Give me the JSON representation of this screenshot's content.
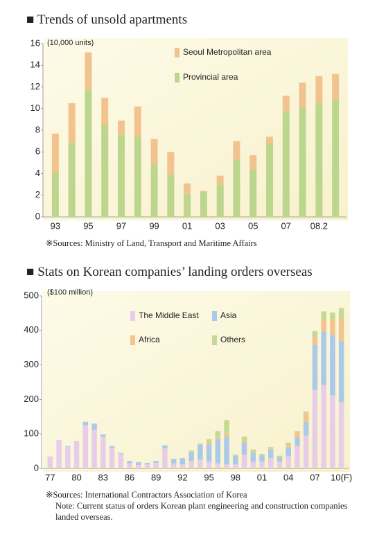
{
  "chart_data": [
    {
      "type": "bar",
      "stacked": true,
      "title": "■ Trends of unsold apartments",
      "y_label": "(10,000 units)",
      "source": "※Sources: Ministry of Land, Transport and Maritime Affairs",
      "categories": [
        "93",
        null,
        "95",
        null,
        "97",
        null,
        "99",
        null,
        "01",
        null,
        "03",
        null,
        "05",
        null,
        "07",
        null,
        "08.2",
        null
      ],
      "series": [
        {
          "name": "Provincial area",
          "color": "#bcd68e",
          "values": [
            4.1,
            6.9,
            11.7,
            8.5,
            7.6,
            7.4,
            4.9,
            3.9,
            2.1,
            2.3,
            3.0,
            5.3,
            4.4,
            6.8,
            9.8,
            10.1,
            10.5,
            10.8
          ]
        },
        {
          "name": "Seoul Metropolitan area",
          "color": "#f2c38e",
          "values": [
            3.6,
            3.6,
            3.5,
            2.5,
            1.3,
            2.8,
            2.3,
            2.1,
            1.0,
            0.1,
            0.8,
            1.7,
            1.3,
            0.6,
            1.4,
            2.3,
            2.5,
            2.4
          ]
        }
      ],
      "ylim": [
        0,
        16
      ],
      "yticks": [
        0,
        2,
        4,
        6,
        8,
        10,
        12,
        14,
        16
      ],
      "grid": false
    },
    {
      "type": "bar",
      "stacked": true,
      "title": "■ Stats on Korean companies’ landing orders overseas",
      "y_label": "($100 million)",
      "source": "※Sources: International Contractors Association of Korea",
      "note": "Note: Current status of orders Korean plant engineering and construction companies landed overseas.",
      "categories": [
        "77",
        null,
        null,
        "80",
        null,
        null,
        "83",
        null,
        null,
        "86",
        null,
        null,
        "89",
        null,
        null,
        "92",
        null,
        null,
        "95",
        null,
        null,
        "98",
        null,
        null,
        "01",
        null,
        null,
        "04",
        null,
        null,
        "07",
        null,
        null,
        "10(F)"
      ],
      "series": [
        {
          "name": "The Middle East",
          "color": "#e8cde8",
          "values": [
            35,
            82,
            63,
            80,
            125,
            112,
            92,
            60,
            43,
            15,
            10,
            12,
            17,
            58,
            15,
            12,
            22,
            25,
            20,
            15,
            12,
            12,
            40,
            20,
            20,
            30,
            20,
            35,
            65,
            95,
            228,
            242,
            212,
            192
          ]
        },
        {
          "name": "Asia",
          "color": "#abc9e9",
          "values": [
            0,
            0,
            2,
            0,
            10,
            18,
            7,
            5,
            2,
            7,
            8,
            4,
            5,
            9,
            13,
            18,
            25,
            45,
            50,
            70,
            80,
            25,
            35,
            25,
            18,
            25,
            12,
            25,
            25,
            40,
            130,
            155,
            175,
            178
          ]
        },
        {
          "name": "Africa",
          "color": "#f3c48c",
          "values": [
            0,
            0,
            0,
            0,
            0,
            0,
            0,
            0,
            0,
            0,
            0,
            0,
            0,
            0,
            0,
            0,
            0,
            0,
            5,
            8,
            10,
            0,
            5,
            3,
            2,
            2,
            2,
            5,
            15,
            25,
            20,
            35,
            45,
            65
          ]
        },
        {
          "name": "Others",
          "color": "#c4da92",
          "values": [
            0,
            0,
            0,
            0,
            0,
            0,
            0,
            0,
            0,
            0,
            0,
            0,
            0,
            0,
            0,
            0,
            5,
            2,
            10,
            15,
            38,
            3,
            12,
            7,
            2,
            5,
            3,
            10,
            3,
            5,
            20,
            23,
            20,
            30
          ]
        }
      ],
      "ylim": [
        0,
        500
      ],
      "yticks": [
        0,
        100,
        200,
        300,
        400,
        500
      ],
      "grid": false
    }
  ]
}
